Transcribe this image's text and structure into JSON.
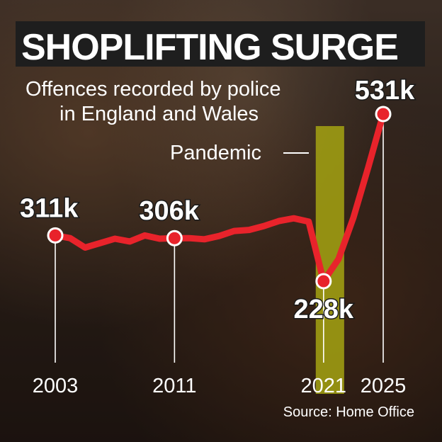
{
  "header": {
    "title": "SHOPLIFTING SURGE",
    "subtitle_line1": "Offences recorded by police",
    "subtitle_line2": "in England and Wales"
  },
  "annotation": {
    "pandemic_label": "Pandemic"
  },
  "footer": {
    "source": "Source: Home Office"
  },
  "colors": {
    "line": "#e8232b",
    "pandemic_band": "#a4a312",
    "text": "#ffffff",
    "title_bg": "#1e1e1e"
  },
  "chart_data": {
    "type": "line",
    "title": "SHOPLIFTING SURGE",
    "subtitle": "Offences recorded by police in England and Wales",
    "x": [
      2003,
      2004,
      2005,
      2006,
      2007,
      2008,
      2009,
      2010,
      2011,
      2012,
      2013,
      2014,
      2015,
      2016,
      2017,
      2018,
      2019,
      2020,
      2021,
      2022,
      2023,
      2024,
      2025
    ],
    "y": [
      311,
      306,
      289,
      297,
      305,
      300,
      311,
      305,
      306,
      306,
      304,
      310,
      319,
      321,
      328,
      337,
      342,
      336,
      228,
      268,
      343,
      435,
      531
    ],
    "highlight_labels": [
      {
        "year": 2003,
        "label": "311k"
      },
      {
        "year": 2011,
        "label": "306k"
      },
      {
        "year": 2021,
        "label": "228k"
      },
      {
        "year": 2025,
        "label": "531k"
      }
    ],
    "x_tick_labels": [
      "2003",
      "2011",
      "2021",
      "2025"
    ],
    "shaded_region": {
      "from": 2020,
      "to": 2022,
      "label": "Pandemic"
    },
    "ylim": [
      150,
      600
    ],
    "grid": false,
    "legend": "none"
  }
}
